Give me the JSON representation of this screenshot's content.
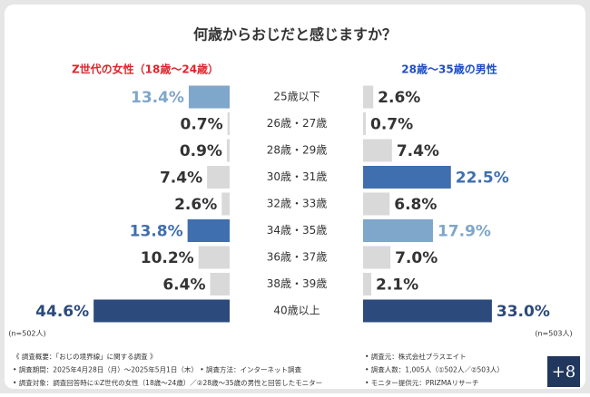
{
  "chart_data": {
    "type": "butterfly-bar",
    "title": "何歳からおじだと感じますか？",
    "categories": [
      "25歳以下",
      "26歳・27歳",
      "28歳・29歳",
      "30歳・31歳",
      "32歳・33歳",
      "34歳・35歳",
      "36歳・37歳",
      "38歳・39歳",
      "40歳以上"
    ],
    "series": [
      {
        "name": "Z世代の女性（18歳〜24歳）",
        "name_color": "#e0242b",
        "note": "(n=502人)",
        "xlim": [
          0,
          50
        ],
        "values": [
          13.4,
          0.7,
          0.9,
          7.4,
          2.6,
          13.8,
          10.2,
          6.4,
          44.6
        ],
        "value_labels": [
          "13.4%",
          "0.7%",
          "0.9%",
          "7.4%",
          "2.6%",
          "13.8%",
          "10.2%",
          "6.4%",
          "44.6%"
        ],
        "colors": [
          "#7fa6cb",
          "#d9d9d9",
          "#d9d9d9",
          "#d9d9d9",
          "#d9d9d9",
          "#3f6fae",
          "#d9d9d9",
          "#d9d9d9",
          "#2c4a7c"
        ]
      },
      {
        "name": "28歳〜35歳の男性",
        "name_color": "#1d4fc0",
        "note": "(n=503人)",
        "xlim": [
          0,
          40
        ],
        "values": [
          2.6,
          0.7,
          7.4,
          22.5,
          6.8,
          17.9,
          7.0,
          2.1,
          33.0
        ],
        "value_labels": [
          "2.6%",
          "0.7%",
          "7.4%",
          "22.5%",
          "6.8%",
          "17.9%",
          "7.0%",
          "2.1%",
          "33.0%"
        ],
        "colors": [
          "#d9d9d9",
          "#d9d9d9",
          "#d9d9d9",
          "#3f6fae",
          "#d9d9d9",
          "#7fa6cb",
          "#d9d9d9",
          "#d9d9d9",
          "#2c4a7c"
        ]
      }
    ],
    "notes_left": [
      "《 調査概要：「おじの境界線」に関する調査 》",
      "• 調査期間：2025年4月28日（月）〜2025年5月1日（木） • 調査方法：インターネット調査",
      "• 調査対象：調査回答時に①Z世代の女性（18歳〜24歳）／②28歳〜35歳の男性と回答したモニター"
    ],
    "notes_right": [
      "• 調査元：株式会社プラスエイト",
      "• 調査人数：1,005人（①502人／②503人）",
      "• モニター提供元：PRIZMAリサーチ"
    ],
    "logo": "+8"
  }
}
